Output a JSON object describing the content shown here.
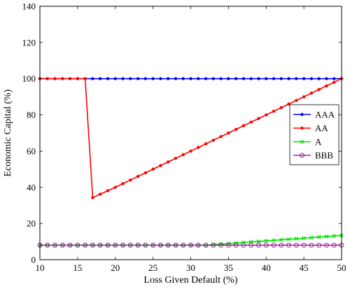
{
  "chart_data": {
    "type": "line",
    "title": "",
    "xlabel": "Loss Given Default (%)",
    "ylabel": "Economic Capital (%)",
    "xlim": [
      10,
      50
    ],
    "ylim": [
      0,
      140
    ],
    "xticks": [
      10,
      15,
      20,
      25,
      30,
      35,
      40,
      45,
      50
    ],
    "yticks": [
      0,
      20,
      40,
      60,
      80,
      100,
      120,
      140
    ],
    "grid": false,
    "legend_position": "right",
    "x": [
      10,
      11,
      12,
      13,
      14,
      15,
      16,
      17,
      18,
      19,
      20,
      21,
      22,
      23,
      24,
      25,
      26,
      27,
      28,
      29,
      30,
      31,
      32,
      33,
      34,
      35,
      36,
      37,
      38,
      39,
      40,
      41,
      42,
      43,
      44,
      45,
      46,
      47,
      48,
      49,
      50
    ],
    "series": [
      {
        "name": "AAA",
        "color": "#0000ff",
        "marker": "dot",
        "values": [
          100,
          100,
          100,
          100,
          100,
          100,
          100,
          100,
          100,
          100,
          100,
          100,
          100,
          100,
          100,
          100,
          100,
          100,
          100,
          100,
          100,
          100,
          100,
          100,
          100,
          100,
          100,
          100,
          100,
          100,
          100,
          100,
          100,
          100,
          100,
          100,
          100,
          100,
          100,
          100,
          100
        ]
      },
      {
        "name": "AA",
        "color": "#ff0000",
        "marker": "dot",
        "values": [
          100,
          100,
          100,
          100,
          100,
          100,
          100,
          34.3,
          36.2,
          38.1,
          40.0,
          42.0,
          44.0,
          46.0,
          48.0,
          50.0,
          52.0,
          54.0,
          56.0,
          58.0,
          60.0,
          62.0,
          64.0,
          66.0,
          68.0,
          70.0,
          72.0,
          74.0,
          76.0,
          78.0,
          80.0,
          82.0,
          84.0,
          86.0,
          88.0,
          90.0,
          92.0,
          94.0,
          96.0,
          98.0,
          100.0
        ]
      },
      {
        "name": "A",
        "color": "#00e000",
        "marker": "cross",
        "values": [
          8.0,
          8.0,
          8.0,
          8.0,
          8.0,
          8.0,
          8.0,
          8.0,
          8.0,
          8.0,
          8.0,
          8.0,
          8.0,
          8.0,
          8.0,
          8.0,
          8.0,
          8.0,
          8.0,
          8.0,
          8.0,
          8.0,
          8.0,
          8.3,
          8.6,
          8.9,
          9.2,
          9.5,
          9.8,
          10.1,
          10.4,
          10.7,
          11.0,
          11.3,
          11.6,
          11.9,
          12.2,
          12.5,
          12.8,
          13.1,
          13.4
        ]
      },
      {
        "name": "BBB",
        "color": "#a020a0",
        "marker": "circle",
        "values": [
          8.0,
          8.0,
          8.0,
          8.0,
          8.0,
          8.0,
          8.0,
          8.0,
          8.0,
          8.0,
          8.0,
          8.0,
          8.0,
          8.0,
          8.0,
          8.0,
          8.0,
          8.0,
          8.0,
          8.0,
          8.0,
          8.0,
          8.0,
          8.0,
          8.0,
          8.0,
          8.0,
          8.0,
          8.0,
          8.0,
          8.0,
          8.0,
          8.0,
          8.0,
          8.0,
          8.0,
          8.0,
          8.0,
          8.0,
          8.0,
          8.0
        ]
      }
    ]
  }
}
